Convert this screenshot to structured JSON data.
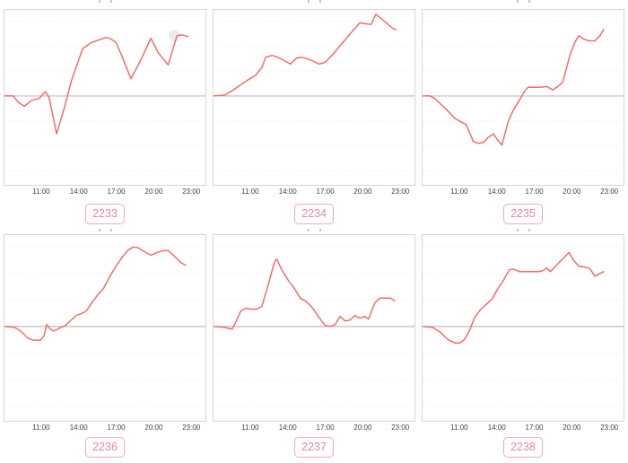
{
  "style": {
    "line_color": "#f56c6c",
    "baseline_color": "#bdbdbd",
    "gridline_color": "#f0f0f0",
    "plot_border_color": "#d6d6d6",
    "badge_border_color": "#f7a6c5",
    "badge_text_color": "#ee82a8",
    "tick_text_color": "#3f3f3f",
    "halo_color": "#e4e4e4"
  },
  "chart_data": [
    {
      "type": "line",
      "badge_label": "2233",
      "x_tick_labels": [
        "11:00",
        "14:00",
        "17:00",
        "20:00",
        "23:00"
      ],
      "x_tick_hours": [
        11,
        14,
        17,
        20,
        23
      ],
      "x_range": [
        8,
        24.2
      ],
      "y_note": "normalized: 0 = gray baseline, 1.0 = plot top",
      "baseline": 0,
      "grid_levels": [
        0.87,
        0.58,
        0.29,
        -0.29,
        -0.58,
        -0.87
      ],
      "halo_point": {
        "x": 21.7,
        "v": 0.7
      },
      "points": [
        [
          8,
          0
        ],
        [
          8.7,
          0
        ],
        [
          9.1,
          -0.07
        ],
        [
          9.6,
          -0.12
        ],
        [
          10.2,
          -0.05
        ],
        [
          10.8,
          -0.03
        ],
        [
          11.1,
          0.02
        ],
        [
          11.3,
          0.05
        ],
        [
          11.6,
          -0.02
        ],
        [
          12.2,
          -0.44
        ],
        [
          12.8,
          -0.15
        ],
        [
          13.4,
          0.18
        ],
        [
          14.3,
          0.55
        ],
        [
          15.0,
          0.62
        ],
        [
          15.6,
          0.65
        ],
        [
          16.2,
          0.68
        ],
        [
          16.6,
          0.66
        ],
        [
          17.0,
          0.62
        ],
        [
          17.5,
          0.45
        ],
        [
          18.2,
          0.2
        ],
        [
          19.0,
          0.42
        ],
        [
          19.8,
          0.67
        ],
        [
          20.4,
          0.5
        ],
        [
          21.2,
          0.36
        ],
        [
          21.9,
          0.7
        ],
        [
          22.3,
          0.71
        ],
        [
          22.8,
          0.69
        ]
      ]
    },
    {
      "type": "line",
      "badge_label": "2234",
      "x_tick_labels": [
        "11:00",
        "14:00",
        "17:00",
        "20:00",
        "23:00"
      ],
      "x_tick_hours": [
        11,
        14,
        17,
        20,
        23
      ],
      "x_range": [
        8,
        24.2
      ],
      "y_note": "normalized: 0 = gray baseline, 1.0 = plot top",
      "baseline": 0,
      "grid_levels": [
        0.87,
        0.58,
        0.29,
        -0.29,
        -0.58,
        -0.87
      ],
      "halo_point": null,
      "points": [
        [
          8,
          0
        ],
        [
          8.9,
          0.01
        ],
        [
          9.5,
          0.06
        ],
        [
          10.1,
          0.12
        ],
        [
          10.7,
          0.18
        ],
        [
          11.4,
          0.24
        ],
        [
          11.9,
          0.33
        ],
        [
          12.2,
          0.45
        ],
        [
          12.7,
          0.47
        ],
        [
          13.0,
          0.46
        ],
        [
          13.6,
          0.42
        ],
        [
          14.2,
          0.37
        ],
        [
          14.7,
          0.44
        ],
        [
          15.1,
          0.45
        ],
        [
          15.6,
          0.43
        ],
        [
          16.1,
          0.4
        ],
        [
          16.5,
          0.37
        ],
        [
          17.0,
          0.39
        ],
        [
          17.6,
          0.48
        ],
        [
          18.3,
          0.6
        ],
        [
          19.0,
          0.72
        ],
        [
          19.8,
          0.85
        ],
        [
          20.2,
          0.84
        ],
        [
          20.7,
          0.83
        ],
        [
          21.1,
          0.95
        ],
        [
          21.5,
          0.9
        ],
        [
          22.0,
          0.84
        ],
        [
          22.4,
          0.79
        ],
        [
          22.7,
          0.77
        ]
      ]
    },
    {
      "type": "line",
      "badge_label": "2235",
      "x_tick_labels": [
        "11:00",
        "14:00",
        "17:00",
        "20:00",
        "23:00"
      ],
      "x_tick_hours": [
        11,
        14,
        17,
        20,
        23
      ],
      "x_range": [
        8,
        24.2
      ],
      "y_note": "normalized: 0 = gray baseline, 1.0 = plot top",
      "baseline": 0,
      "grid_levels": [
        0.87,
        0.58,
        0.29,
        -0.29,
        -0.58,
        -0.87
      ],
      "halo_point": null,
      "points": [
        [
          8,
          0
        ],
        [
          8.6,
          0
        ],
        [
          9.0,
          -0.03
        ],
        [
          9.5,
          -0.1
        ],
        [
          10.0,
          -0.17
        ],
        [
          10.6,
          -0.26
        ],
        [
          11.2,
          -0.31
        ],
        [
          11.5,
          -0.33
        ],
        [
          12.1,
          -0.53
        ],
        [
          12.5,
          -0.55
        ],
        [
          12.9,
          -0.54
        ],
        [
          13.3,
          -0.48
        ],
        [
          13.7,
          -0.44
        ],
        [
          14.1,
          -0.52
        ],
        [
          14.4,
          -0.57
        ],
        [
          14.9,
          -0.3
        ],
        [
          15.3,
          -0.17
        ],
        [
          15.8,
          -0.05
        ],
        [
          16.2,
          0.05
        ],
        [
          16.5,
          0.1
        ],
        [
          17.0,
          0.1
        ],
        [
          17.5,
          0.1
        ],
        [
          18.0,
          0.11
        ],
        [
          18.5,
          0.07
        ],
        [
          18.9,
          0.11
        ],
        [
          19.3,
          0.16
        ],
        [
          19.9,
          0.48
        ],
        [
          20.3,
          0.63
        ],
        [
          20.6,
          0.7
        ],
        [
          21.0,
          0.66
        ],
        [
          21.4,
          0.64
        ],
        [
          21.9,
          0.64
        ],
        [
          22.3,
          0.7
        ],
        [
          22.6,
          0.77
        ]
      ]
    },
    {
      "type": "line",
      "badge_label": "2236",
      "x_tick_labels": [
        "11:00",
        "14:00",
        "17:00",
        "20:00",
        "23:00"
      ],
      "x_tick_hours": [
        11,
        14,
        17,
        20,
        23
      ],
      "x_range": [
        8,
        24.2
      ],
      "y_note": "normalized: 0 = gray baseline, 1.0 = plot top",
      "baseline": 0,
      "grid_levels": [
        0.87,
        0.58,
        0.29,
        -0.29,
        -0.58,
        -0.87
      ],
      "halo_point": null,
      "points": [
        [
          8,
          0
        ],
        [
          8.8,
          -0.01
        ],
        [
          9.3,
          -0.05
        ],
        [
          9.9,
          -0.13
        ],
        [
          10.3,
          -0.15
        ],
        [
          10.9,
          -0.15
        ],
        [
          11.2,
          -0.1
        ],
        [
          11.4,
          0.02
        ],
        [
          11.7,
          -0.03
        ],
        [
          12.0,
          -0.05
        ],
        [
          12.4,
          -0.02
        ],
        [
          12.9,
          0.01
        ],
        [
          13.3,
          0.06
        ],
        [
          13.8,
          0.12
        ],
        [
          14.2,
          0.14
        ],
        [
          14.6,
          0.17
        ],
        [
          15.1,
          0.27
        ],
        [
          15.6,
          0.36
        ],
        [
          16.0,
          0.42
        ],
        [
          16.5,
          0.55
        ],
        [
          17.0,
          0.66
        ],
        [
          17.5,
          0.76
        ],
        [
          18.0,
          0.84
        ],
        [
          18.4,
          0.87
        ],
        [
          18.8,
          0.86
        ],
        [
          19.4,
          0.81
        ],
        [
          19.8,
          0.78
        ],
        [
          20.3,
          0.81
        ],
        [
          20.8,
          0.83
        ],
        [
          21.2,
          0.83
        ],
        [
          21.7,
          0.77
        ],
        [
          22.2,
          0.7
        ],
        [
          22.6,
          0.67
        ]
      ]
    },
    {
      "type": "line",
      "badge_label": "2237",
      "x_tick_labels": [
        "11:00",
        "14:00",
        "17:00",
        "20:00",
        "23:00"
      ],
      "x_tick_hours": [
        11,
        14,
        17,
        20,
        23
      ],
      "x_range": [
        8,
        24.2
      ],
      "y_note": "normalized: 0 = gray baseline, 1.0 = plot top",
      "baseline": 0,
      "grid_levels": [
        0.87,
        0.58,
        0.29,
        -0.29,
        -0.58,
        -0.87
      ],
      "halo_point": null,
      "points": [
        [
          8,
          0
        ],
        [
          8.9,
          -0.01
        ],
        [
          9.5,
          -0.03
        ],
        [
          9.8,
          0.05
        ],
        [
          10.2,
          0.17
        ],
        [
          10.6,
          0.2
        ],
        [
          11.0,
          0.19
        ],
        [
          11.5,
          0.19
        ],
        [
          11.9,
          0.22
        ],
        [
          12.4,
          0.45
        ],
        [
          12.9,
          0.7
        ],
        [
          13.1,
          0.74
        ],
        [
          13.5,
          0.62
        ],
        [
          14.0,
          0.51
        ],
        [
          14.5,
          0.42
        ],
        [
          15.0,
          0.31
        ],
        [
          15.5,
          0.27
        ],
        [
          16.0,
          0.2
        ],
        [
          16.5,
          0.1
        ],
        [
          17.0,
          0.01
        ],
        [
          17.4,
          0.0
        ],
        [
          17.8,
          0.02
        ],
        [
          18.2,
          0.11
        ],
        [
          18.6,
          0.06
        ],
        [
          19.0,
          0.07
        ],
        [
          19.4,
          0.12
        ],
        [
          19.8,
          0.09
        ],
        [
          20.2,
          0.11
        ],
        [
          20.5,
          0.08
        ],
        [
          21.0,
          0.26
        ],
        [
          21.4,
          0.31
        ],
        [
          21.9,
          0.31
        ],
        [
          22.3,
          0.31
        ],
        [
          22.6,
          0.28
        ]
      ]
    },
    {
      "type": "line",
      "badge_label": "2238",
      "x_tick_labels": [
        "11:00",
        "14:00",
        "17:00",
        "20:00",
        "23:00"
      ],
      "x_tick_hours": [
        11,
        14,
        17,
        20,
        23
      ],
      "x_range": [
        8,
        24.2
      ],
      "y_note": "normalized: 0 = gray baseline, 1.0 = plot top",
      "baseline": 0,
      "grid_levels": [
        0.87,
        0.58,
        0.29,
        -0.29,
        -0.58,
        -0.87
      ],
      "halo_point": null,
      "points": [
        [
          8,
          0
        ],
        [
          8.8,
          -0.01
        ],
        [
          9.4,
          -0.06
        ],
        [
          10.0,
          -0.14
        ],
        [
          10.6,
          -0.18
        ],
        [
          11.0,
          -0.18
        ],
        [
          11.4,
          -0.14
        ],
        [
          11.8,
          -0.04
        ],
        [
          12.2,
          0.1
        ],
        [
          12.7,
          0.19
        ],
        [
          13.2,
          0.25
        ],
        [
          13.6,
          0.3
        ],
        [
          14.1,
          0.42
        ],
        [
          14.5,
          0.5
        ],
        [
          15.0,
          0.62
        ],
        [
          15.3,
          0.63
        ],
        [
          15.8,
          0.6
        ],
        [
          16.3,
          0.6
        ],
        [
          16.8,
          0.6
        ],
        [
          17.3,
          0.6
        ],
        [
          17.7,
          0.61
        ],
        [
          18.0,
          0.64
        ],
        [
          18.3,
          0.6
        ],
        [
          18.8,
          0.67
        ],
        [
          19.3,
          0.74
        ],
        [
          19.8,
          0.81
        ],
        [
          20.2,
          0.72
        ],
        [
          20.6,
          0.66
        ],
        [
          21.1,
          0.65
        ],
        [
          21.5,
          0.63
        ],
        [
          21.9,
          0.55
        ],
        [
          22.3,
          0.58
        ],
        [
          22.6,
          0.6
        ]
      ]
    }
  ]
}
